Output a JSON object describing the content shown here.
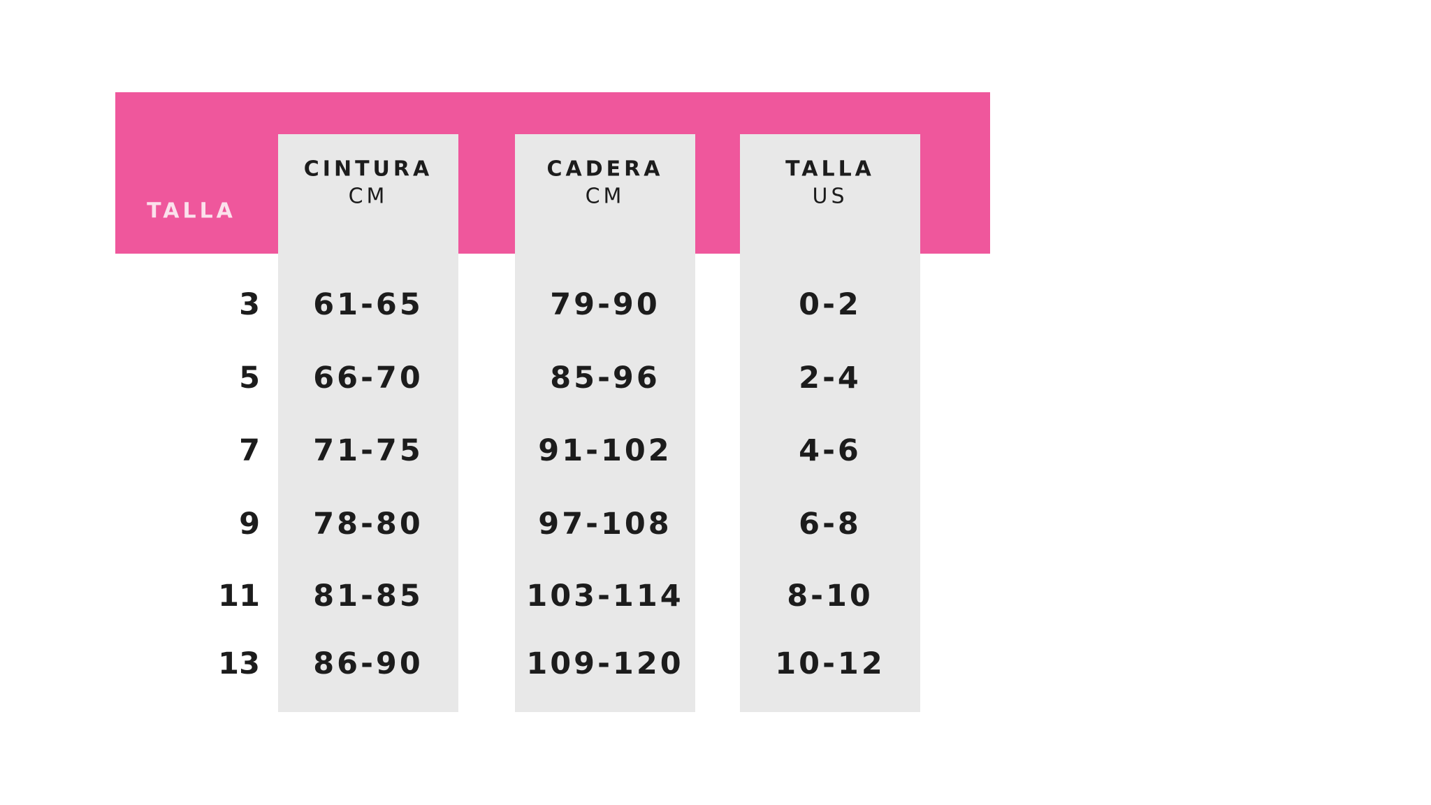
{
  "table": {
    "size_label": "TALLA",
    "columns": [
      {
        "title": "CINTURA",
        "unit": "CM"
      },
      {
        "title": "CADERA",
        "unit": "CM"
      },
      {
        "title": "TALLA",
        "unit": "US"
      }
    ],
    "rows": [
      {
        "size": "3",
        "cells": [
          "61-65",
          "79-90",
          "0-2"
        ]
      },
      {
        "size": "5",
        "cells": [
          "66-70",
          "85-96",
          "2-4"
        ]
      },
      {
        "size": "7",
        "cells": [
          "71-75",
          "91-102",
          "4-6"
        ]
      },
      {
        "size": "9",
        "cells": [
          "78-80",
          "97-108",
          "6-8"
        ]
      },
      {
        "size": "11",
        "cells": [
          "81-85",
          "103-114",
          "8-10"
        ]
      },
      {
        "size": "13",
        "cells": [
          "86-90",
          "109-120",
          "10-12"
        ]
      }
    ]
  }
}
